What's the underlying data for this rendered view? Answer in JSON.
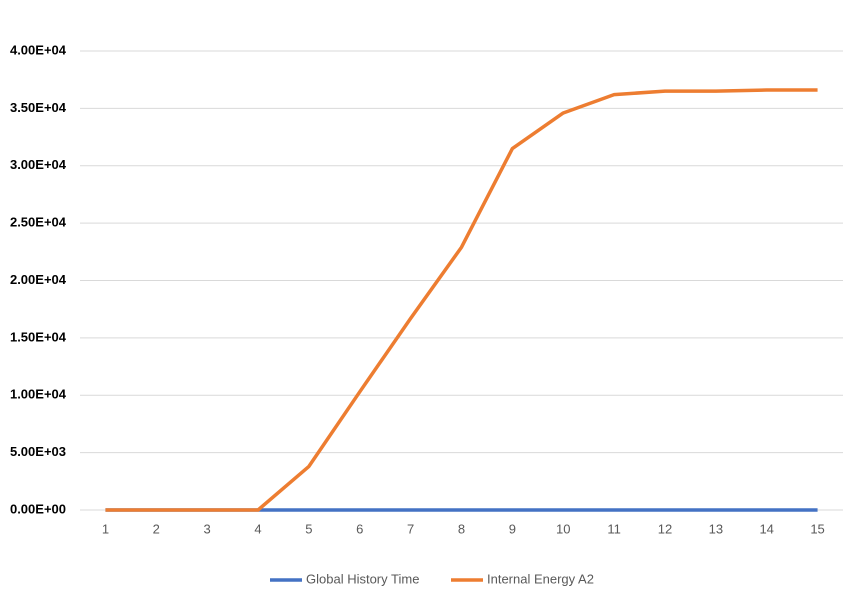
{
  "chart_data": {
    "type": "line",
    "categories": [
      1,
      2,
      3,
      4,
      5,
      6,
      7,
      8,
      9,
      10,
      11,
      12,
      13,
      14,
      15
    ],
    "series": [
      {
        "name": "Global History Time",
        "color": "#4472c4",
        "values": [
          0,
          0,
          0,
          0,
          0,
          0,
          0,
          0,
          0,
          0,
          0,
          0,
          0,
          0,
          0
        ]
      },
      {
        "name": "Internal Energy A2",
        "color": "#ed7d31",
        "values": [
          0,
          0,
          0,
          0,
          3800,
          10300,
          16700,
          22900,
          31500,
          34600,
          36200,
          36500,
          36500,
          36600,
          36600
        ]
      }
    ],
    "ylim": [
      0,
      40000
    ],
    "yticks": [
      {
        "value": 0,
        "label": "0.00E+00"
      },
      {
        "value": 5000,
        "label": "5.00E+03"
      },
      {
        "value": 10000,
        "label": "1.00E+04"
      },
      {
        "value": 15000,
        "label": "1.50E+04"
      },
      {
        "value": 20000,
        "label": "2.00E+04"
      },
      {
        "value": 25000,
        "label": "2.50E+04"
      },
      {
        "value": 30000,
        "label": "3.00E+04"
      },
      {
        "value": 35000,
        "label": "3.50E+04"
      },
      {
        "value": 40000,
        "label": "4.00E+04"
      }
    ],
    "grid": true,
    "legend": "bottom"
  }
}
